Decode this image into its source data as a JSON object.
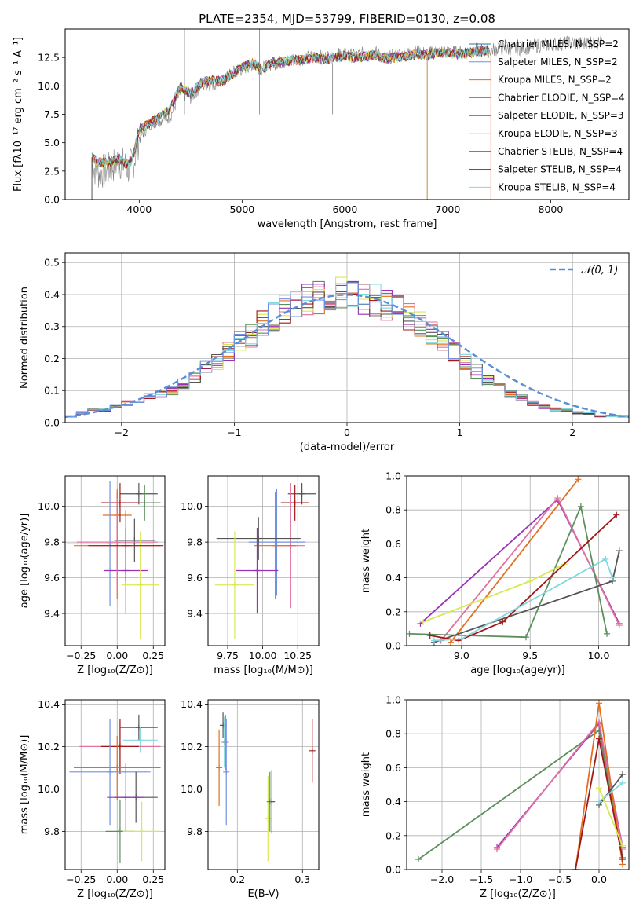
{
  "colors": [
    "#1f77b4",
    "#e07020",
    "#5c8f5c",
    "#9a30b8",
    "#e070a0",
    "#d8e850",
    "#555555",
    "#a01818",
    "#80d8e0",
    "#7090e0"
  ],
  "chart_data": [
    {
      "type": "line",
      "title": "PLATE=2354, MJD=53799, FIBERID=0130, z=0.08",
      "xlabel": "wavelength [Angstrom, rest frame]",
      "ylabel": "Flux [fλ10⁻¹⁷ erg cm⁻² s⁻¹ A⁻¹]",
      "xlim": [
        3280,
        8760
      ],
      "ylim": [
        0,
        15
      ],
      "xticks": [
        "4000",
        "5000",
        "6000",
        "7000",
        "8000"
      ],
      "yticks": [
        "0.0",
        "2.5",
        "5.0",
        "7.5",
        "10.0",
        "12.5"
      ],
      "grid": false,
      "legend_position": "top-right",
      "legend": [
        "Chabrier MILES, N_SSP=2",
        "Salpeter MILES, N_SSP=2",
        "Kroupa MILES, N_SSP=2",
        "Chabrier ELODIE, N_SSP=4",
        "Salpeter ELODIE, N_SSP=3",
        "Kroupa ELODIE, N_SSP=3",
        "Chabrier STELIB, N_SSP=4",
        "Salpeter STELIB, N_SSP=4",
        "Kroupa STELIB, N_SSP=4"
      ],
      "legend_color_index": [
        0,
        9,
        1,
        2,
        3,
        5,
        6,
        7,
        8
      ],
      "series": [
        {
          "name": "data",
          "x": [
            3540,
            3600,
            3700,
            3800,
            3900,
            3950,
            4000,
            4100,
            4200,
            4300,
            4400,
            4500,
            4600,
            4700,
            4800,
            4900,
            5000,
            5100,
            5200,
            5300,
            5400,
            5500,
            5600,
            5700,
            5800,
            5900,
            6000,
            6100,
            6200,
            6300,
            6400,
            6500,
            6600,
            6700,
            6800,
            6900,
            7000,
            7100,
            7200,
            7300,
            7400,
            7500,
            7600,
            7700,
            7800,
            7900,
            8000,
            8100,
            8200,
            8300,
            8400,
            8500
          ],
          "y": [
            3.0,
            2.4,
            2.6,
            3.4,
            2.7,
            3.5,
            5.4,
            6.7,
            7.0,
            7.3,
            9.4,
            9.0,
            10.0,
            10.2,
            10.3,
            11.1,
            11.5,
            11.9,
            11.5,
            12.0,
            12.1,
            12.3,
            12.4,
            12.6,
            12.5,
            12.7,
            12.8,
            12.6,
            12.9,
            12.9,
            12.4,
            12.7,
            12.8,
            13.0,
            12.8,
            13.0,
            13.0,
            12.9,
            13.0,
            13.2,
            13.1,
            13.3,
            13.2,
            13.3,
            13.4,
            13.6,
            13.6,
            13.7,
            13.8,
            13.7,
            13.9,
            13.8
          ]
        },
        {
          "name": "model",
          "x": [
            3540,
            3600,
            3700,
            3800,
            3900,
            3950,
            4000,
            4100,
            4200,
            4300,
            4400,
            4500,
            4600,
            4700,
            4800,
            4900,
            5000,
            5100,
            5200,
            5300,
            5400,
            5500,
            5600,
            5700,
            5800,
            5900,
            6000,
            6100,
            6200,
            6300,
            6400,
            6500,
            6600,
            6700,
            6800,
            6900,
            7000,
            7100,
            7200,
            7300,
            7400
          ],
          "y": [
            3.7,
            3.2,
            3.3,
            3.6,
            3.0,
            4.1,
            6.2,
            6.7,
            7.3,
            8.0,
            9.9,
            9.3,
            10.3,
            10.5,
            10.4,
            11.0,
            11.6,
            12.0,
            11.4,
            12.1,
            12.1,
            12.3,
            12.3,
            12.5,
            12.3,
            12.5,
            12.6,
            12.5,
            12.6,
            12.7,
            12.4,
            12.5,
            12.6,
            12.8,
            12.7,
            12.9,
            12.9,
            12.8,
            12.9,
            13.0,
            13.1
          ]
        }
      ]
    },
    {
      "type": "bar",
      "xlabel": "(data-model)/error",
      "ylabel": "Normed distribution",
      "xlim": [
        -2.5,
        2.5
      ],
      "ylim": [
        0,
        0.53
      ],
      "xticks": [
        "−2",
        "−1",
        "0",
        "1",
        "2"
      ],
      "yticks": [
        "0.0",
        "0.1",
        "0.2",
        "0.3",
        "0.4",
        "0.5"
      ],
      "grid": true,
      "legend_position": "top-right",
      "legend": [
        "𝒩(0, 1)"
      ],
      "bin_edges_start": -2.5,
      "bin_width": 0.1,
      "histogram_values": [
        0.02,
        0.03,
        0.04,
        0.04,
        0.05,
        0.06,
        0.07,
        0.08,
        0.09,
        0.1,
        0.12,
        0.14,
        0.17,
        0.19,
        0.22,
        0.25,
        0.27,
        0.31,
        0.33,
        0.35,
        0.37,
        0.38,
        0.39,
        0.4,
        0.41,
        0.4,
        0.39,
        0.38,
        0.37,
        0.36,
        0.33,
        0.31,
        0.28,
        0.25,
        0.22,
        0.19,
        0.16,
        0.13,
        0.11,
        0.09,
        0.08,
        0.06,
        0.05,
        0.04,
        0.04,
        0.03,
        0.03,
        0.02,
        0.02,
        0.02
      ],
      "normal_curve": "N(0,1) pdf"
    },
    {
      "type": "scatter",
      "xlabel": "Z [log₁₀(Z/Z⊙)]",
      "ylabel": "age  [log₁₀(age/yr)]",
      "xlim": [
        -0.36,
        0.33
      ],
      "ylim": [
        9.22,
        10.17
      ],
      "xticks": [
        "−0.25",
        "0.00",
        "0.25"
      ],
      "yticks": [
        "9.4",
        "9.6",
        "9.8",
        "10.0"
      ],
      "points": [
        {
          "x": 0.0,
          "y": 9.95,
          "xerr": 0.1,
          "yerr": 0.15,
          "c": 1
        },
        {
          "x": 0.15,
          "y": 10.07,
          "xerr": 0.13,
          "yerr": 0.06,
          "c": 6
        },
        {
          "x": 0.19,
          "y": 10.02,
          "xerr": 0.11,
          "yerr": 0.1,
          "c": 2
        },
        {
          "x": 0.02,
          "y": 10.02,
          "xerr": 0.13,
          "yerr": 0.11,
          "c": 7
        },
        {
          "x": -0.05,
          "y": 9.79,
          "xerr": 0.3,
          "yerr": 0.35,
          "c": 9
        },
        {
          "x": 0.0,
          "y": 9.78,
          "xerr": 0.3,
          "yerr": 0.3,
          "c": 1
        },
        {
          "x": 0.12,
          "y": 9.81,
          "xerr": 0.14,
          "yerr": 0.12,
          "c": 6
        },
        {
          "x": 0.06,
          "y": 9.64,
          "xerr": 0.15,
          "yerr": 0.24,
          "c": 3
        },
        {
          "x": 0.0,
          "y": 9.8,
          "xerr": 0.28,
          "yerr": 0.25,
          "c": 4
        },
        {
          "x": 0.16,
          "y": 9.56,
          "xerr": 0.13,
          "yerr": 0.3,
          "c": 5
        },
        {
          "x": 0.06,
          "y": 9.78,
          "xerr": 0.26,
          "yerr": 0.2,
          "c": 7
        }
      ]
    },
    {
      "type": "scatter",
      "xlabel": "mass [log₁₀(M/M⊙)]",
      "ylabel": "",
      "xlim": [
        9.61,
        10.4
      ],
      "ylim": [
        9.22,
        10.17
      ],
      "xticks": [
        "9.75",
        "10.00",
        "10.25"
      ],
      "yticks": [
        "9.4",
        "9.6",
        "9.8",
        "10.0"
      ],
      "points": [
        {
          "x": 10.28,
          "y": 10.07,
          "xerr": 0.1,
          "yerr": 0.06,
          "c": 6
        },
        {
          "x": 10.23,
          "y": 10.02,
          "xerr": 0.1,
          "yerr": 0.1,
          "c": 7
        },
        {
          "x": 10.2,
          "y": 9.78,
          "xerr": 0.1,
          "yerr": 0.35,
          "c": 4
        },
        {
          "x": 10.1,
          "y": 9.8,
          "xerr": 0.2,
          "yerr": 0.3,
          "c": 9
        },
        {
          "x": 10.09,
          "y": 9.78,
          "xerr": 0.15,
          "yerr": 0.3,
          "c": 1
        },
        {
          "x": 9.97,
          "y": 9.82,
          "xerr": 0.3,
          "yerr": 0.12,
          "c": 6
        },
        {
          "x": 9.96,
          "y": 9.64,
          "xerr": 0.15,
          "yerr": 0.24,
          "c": 3
        },
        {
          "x": 9.8,
          "y": 9.56,
          "xerr": 0.14,
          "yerr": 0.3,
          "c": 5
        }
      ]
    },
    {
      "type": "line",
      "xlabel": "age  [log₁₀(age/yr)]",
      "ylabel": "mass weight",
      "xlim": [
        8.6,
        10.22
      ],
      "ylim": [
        0,
        1.0
      ],
      "xticks": [
        "9.0",
        "9.5",
        "10.0"
      ],
      "yticks": [
        "0.0",
        "0.2",
        "0.4",
        "0.6",
        "0.8",
        "1.0"
      ],
      "grid": true,
      "series": [
        {
          "c": 1,
          "x": [
            8.92,
            9.85
          ],
          "y": [
            0.02,
            0.98
          ]
        },
        {
          "c": 3,
          "x": [
            8.7,
            9.7,
            10.15
          ],
          "y": [
            0.13,
            0.86,
            0.13
          ]
        },
        {
          "c": 4,
          "x": [
            8.85,
            9.7,
            10.15
          ],
          "y": [
            0.03,
            0.87,
            0.12
          ]
        },
        {
          "c": 2,
          "x": [
            8.62,
            9.47,
            9.87,
            10.06
          ],
          "y": [
            0.07,
            0.05,
            0.82,
            0.07
          ]
        },
        {
          "c": 5,
          "x": [
            8.72,
            9.5,
            9.75
          ],
          "y": [
            0.14,
            0.38,
            0.48
          ]
        },
        {
          "c": 6,
          "x": [
            8.8,
            10.1,
            10.15
          ],
          "y": [
            0.02,
            0.38,
            0.56
          ]
        },
        {
          "c": 7,
          "x": [
            8.77,
            8.98,
            9.3,
            10.13
          ],
          "y": [
            0.06,
            0.03,
            0.14,
            0.77
          ]
        },
        {
          "c": 8,
          "x": [
            8.8,
            9.0,
            10.05,
            10.1
          ],
          "y": [
            0.03,
            0.04,
            0.51,
            0.4
          ]
        }
      ]
    },
    {
      "type": "scatter",
      "xlabel": "Z [log₁₀(Z/Z⊙)]",
      "ylabel": "mass [log₁₀(M/M⊙)]",
      "xlim": [
        -0.36,
        0.33
      ],
      "ylim": [
        9.62,
        10.42
      ],
      "xticks": [
        "−0.25",
        "0.00",
        "0.25"
      ],
      "yticks": [
        "9.8",
        "10.0",
        "10.2",
        "10.4"
      ],
      "points": [
        {
          "x": 0.15,
          "y": 10.29,
          "xerr": 0.13,
          "yerr": 0.06,
          "c": 6
        },
        {
          "x": 0.16,
          "y": 10.23,
          "xerr": 0.12,
          "yerr": 0.06,
          "c": 8
        },
        {
          "x": 0.02,
          "y": 10.2,
          "xerr": 0.28,
          "yerr": 0.12,
          "c": 4
        },
        {
          "x": 0.02,
          "y": 10.2,
          "xerr": 0.13,
          "yerr": 0.13,
          "c": 7
        },
        {
          "x": 0.0,
          "y": 10.1,
          "xerr": 0.3,
          "yerr": 0.15,
          "c": 1
        },
        {
          "x": -0.05,
          "y": 10.08,
          "xerr": 0.28,
          "yerr": 0.25,
          "c": 9
        },
        {
          "x": 0.13,
          "y": 9.96,
          "xerr": 0.15,
          "yerr": 0.12,
          "c": 6
        },
        {
          "x": 0.06,
          "y": 9.96,
          "xerr": 0.13,
          "yerr": 0.16,
          "c": 3
        },
        {
          "x": 0.02,
          "y": 9.8,
          "xerr": 0.1,
          "yerr": 0.15,
          "c": 2
        },
        {
          "x": 0.17,
          "y": 9.8,
          "xerr": 0.13,
          "yerr": 0.14,
          "c": 5
        }
      ]
    },
    {
      "type": "scatter",
      "xlabel": "E(B-V)",
      "ylabel": "",
      "xlim": [
        0.155,
        0.325
      ],
      "ylim": [
        9.62,
        10.42
      ],
      "xticks": [
        "0.2",
        "0.3"
      ],
      "yticks": [
        "9.8",
        "10.0",
        "10.2",
        "10.4"
      ],
      "points": [
        {
          "x": 0.172,
          "y": 10.1,
          "yerr": 0.18,
          "c": 1
        },
        {
          "x": 0.178,
          "y": 10.3,
          "yerr": 0.06,
          "c": 6
        },
        {
          "x": 0.18,
          "y": 10.22,
          "yerr": 0.12,
          "c": 8
        },
        {
          "x": 0.182,
          "y": 10.22,
          "yerr": 0.13,
          "c": 4
        },
        {
          "x": 0.183,
          "y": 10.08,
          "yerr": 0.25,
          "c": 9
        },
        {
          "x": 0.247,
          "y": 9.86,
          "yerr": 0.2,
          "c": 5
        },
        {
          "x": 0.25,
          "y": 9.94,
          "yerr": 0.14,
          "c": 2
        },
        {
          "x": 0.253,
          "y": 9.94,
          "yerr": 0.15,
          "c": 3
        },
        {
          "x": 0.315,
          "y": 10.18,
          "yerr": 0.15,
          "c": 7
        }
      ]
    },
    {
      "type": "line",
      "xlabel": "Z [log₁₀(Z/Z⊙)]",
      "ylabel": "mass weight",
      "xlim": [
        -2.45,
        0.38
      ],
      "ylim": [
        0,
        1.0
      ],
      "xticks": [
        "−2.0",
        "−1.5",
        "−1.0",
        "−0.5",
        "0.0"
      ],
      "yticks": [
        "0.0",
        "0.2",
        "0.4",
        "0.6",
        "0.8",
        "1.0"
      ],
      "grid": true,
      "series": [
        {
          "c": 2,
          "x": [
            -2.3,
            0.0,
            0.3
          ],
          "y": [
            0.06,
            0.82,
            0.07
          ]
        },
        {
          "c": 3,
          "x": [
            -1.3,
            0.0,
            0.3
          ],
          "y": [
            0.13,
            0.86,
            0.13
          ]
        },
        {
          "c": 4,
          "x": [
            -1.3,
            0.0,
            0.3
          ],
          "y": [
            0.12,
            0.87,
            0.12
          ]
        },
        {
          "c": 1,
          "x": [
            -0.3,
            0.0,
            0.3
          ],
          "y": [
            0.0,
            0.98,
            0.03
          ]
        },
        {
          "c": 7,
          "x": [
            -0.3,
            0.0,
            0.3
          ],
          "y": [
            0.0,
            0.77,
            0.06
          ]
        },
        {
          "c": 6,
          "x": [
            0.0,
            0.3
          ],
          "y": [
            0.38,
            0.56
          ]
        },
        {
          "c": 8,
          "x": [
            0.0,
            0.3
          ],
          "y": [
            0.4,
            0.51
          ]
        },
        {
          "c": 5,
          "x": [
            0.0,
            0.3
          ],
          "y": [
            0.48,
            0.14
          ]
        }
      ]
    }
  ]
}
